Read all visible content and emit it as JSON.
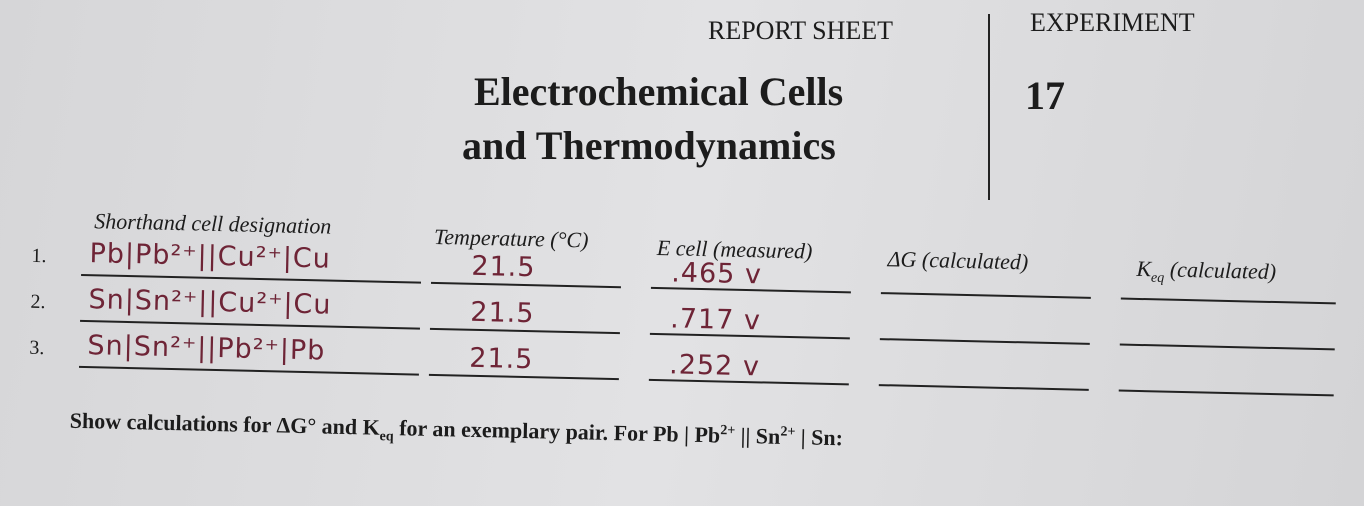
{
  "header": {
    "report": "REPORT SHEET",
    "experiment": "EXPERIMENT",
    "title": [
      "Electrochemical Cells",
      "and Thermodynamics"
    ],
    "number": "17"
  },
  "table": {
    "headers": {
      "cell": "Shorthand cell designation",
      "temperature": "Temperature (°C)",
      "e_cell": "E cell (measured)",
      "delta_g": "ΔG (calculated)",
      "k_eq": [
        "K",
        "eq",
        "(calculated)"
      ]
    },
    "rows": [
      {
        "number": "1.",
        "cell": "Pb|Pb²⁺||Cu²⁺|Cu",
        "temperature": "21.5",
        "e_cell": ".465 v"
      },
      {
        "number": "2.",
        "cell": "Sn|Sn²⁺||Cu²⁺|Cu",
        "temperature": "21.5",
        "e_cell": ".717 v"
      },
      {
        "number": "3.",
        "cell": "Sn|Sn²⁺||Pb²⁺|Pb",
        "temperature": "21.5",
        "e_cell": ".252 v"
      }
    ]
  },
  "footer": [
    "Show calculations for ΔG° and K",
    "eq",
    " for an exemplary pair. For Pb | Pb",
    "2+",
    " || Sn",
    "2+",
    " | Sn:"
  ]
}
